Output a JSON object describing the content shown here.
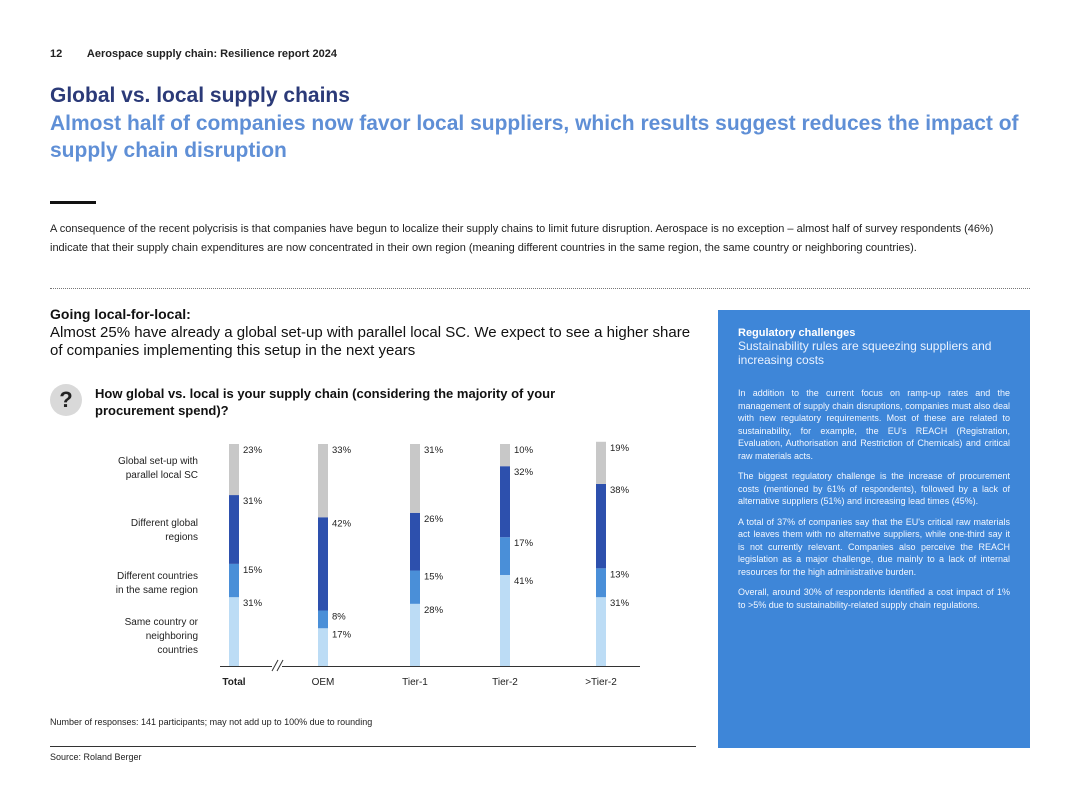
{
  "header": {
    "page_number": "12",
    "report_title": "Aerospace supply chain: Resilience report 2024"
  },
  "title": "Global vs. local supply chains",
  "subtitle": "Almost half of companies now favor local suppliers, which results suggest reduces the impact of supply chain disruption",
  "intro": "A consequence of the recent polycrisis is that companies have begun to localize their supply chains to limit future disruption. Aerospace is no exception – almost half of survey respondents (46%) indicate that their supply chain expenditures are now concentrated in their own region (meaning different countries in the same region, the same country or neighboring countries).",
  "going_local": {
    "heading": "Going local-for-local:",
    "text": "Almost 25% have already a global set-up with parallel local SC. We expect to see a higher share of companies implementing this setup in the next years"
  },
  "question": {
    "icon": "question-icon",
    "mark": "?",
    "text": "How global vs. local is your supply chain (considering the majority of your procurement spend)?"
  },
  "chart_data": {
    "type": "bar",
    "stacked": true,
    "categories": [
      "Total",
      "OEM",
      "Tier-1",
      "Tier-2",
      ">Tier-2"
    ],
    "series": [
      {
        "name": "Same country or neighboring countries",
        "values": [
          31,
          17,
          28,
          41,
          31
        ],
        "labels": [
          "31%",
          "17%",
          "28%",
          "41%",
          "31%"
        ],
        "color": "#bcdcf5"
      },
      {
        "name": "Different countries in the same region",
        "values": [
          15,
          8,
          15,
          17,
          13
        ],
        "labels": [
          "15%",
          "8%",
          "15%",
          "17%",
          "13%"
        ],
        "color": "#4a8fd8"
      },
      {
        "name": "Different global regions",
        "values": [
          31,
          42,
          26,
          32,
          38
        ],
        "labels": [
          "31%",
          "42%",
          "26%",
          "32%",
          "38%"
        ],
        "color": "#2d50ad"
      },
      {
        "name": "Global set-up with parallel local SC",
        "values": [
          23,
          33,
          31,
          10,
          19
        ],
        "labels": [
          "23%",
          "33%",
          "31%",
          "10%",
          "19%"
        ],
        "color": "#c8c8c8"
      }
    ],
    "legend_placement": "left",
    "axis_break_after": "Total",
    "ylim": [
      0,
      100
    ]
  },
  "note": "Number of responses: 141 participants; may not add up to 100% due to rounding",
  "source": "Source: Roland Berger",
  "sidebar": {
    "heading": "Regulatory challenges",
    "subheading": "Sustainability rules are squeezing suppliers and increasing costs",
    "paragraphs": [
      "In addition to the current focus on ramp-up rates and the management of supply chain disruptions, companies must also deal with new regulatory requirements. Most of these are related to sustainability, for example, the EU's REACH (Registration, Evaluation, Authorisation and Restriction of Chemicals) and critical raw materials acts.",
      "The biggest regulatory challenge is the increase of procurement costs (mentioned by 61% of respondents), followed by a lack of alternative suppliers (51%) and increasing lead times (45%).",
      "A total of 37% of companies say that the EU's critical raw materials act leaves them with no alternative suppliers, while one-third say it is not currently relevant. Companies also perceive the REACH legislation as a major challenge, due mainly to a lack of internal resources for the high administrative burden.",
      "Overall, around 30% of respondents identified a cost impact of 1% to >5% due to sustainability-related supply chain regulations."
    ]
  }
}
